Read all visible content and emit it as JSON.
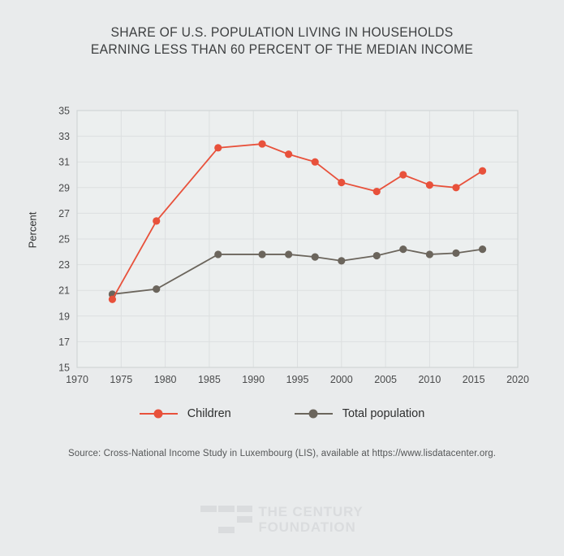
{
  "header": {
    "line1": "SHARE OF U.S. POPULATION LIVING IN HOUSEHOLDS",
    "line2": "EARNING LESS THAN 60 PERCENT OF THE MEDIAN INCOME"
  },
  "chart_data": {
    "type": "line",
    "title": "Share of U.S. population living in households earning less than 60 percent of the median income",
    "ylabel": "Percent",
    "xlabel": "",
    "x": [
      1974,
      1979,
      1986,
      1991,
      1994,
      1997,
      2000,
      2004,
      2007,
      2010,
      2013,
      2016
    ],
    "series": [
      {
        "name": "Children",
        "color": "#e8513b",
        "values": [
          20.3,
          26.4,
          32.1,
          32.4,
          31.6,
          31.0,
          29.4,
          28.7,
          30.0,
          29.2,
          29.0,
          30.3
        ]
      },
      {
        "name": "Total population",
        "color": "#6b655c",
        "values": [
          20.7,
          21.1,
          23.8,
          23.8,
          23.8,
          23.6,
          23.3,
          23.7,
          24.2,
          23.8,
          23.9,
          24.2
        ]
      }
    ],
    "xlim": [
      1970,
      2020
    ],
    "ylim": [
      15,
      35
    ],
    "xticks": [
      1970,
      1975,
      1980,
      1985,
      1990,
      1995,
      2000,
      2005,
      2010,
      2015,
      2020
    ],
    "yticks": [
      15,
      17,
      19,
      21,
      23,
      25,
      27,
      29,
      31,
      33,
      35
    ],
    "grid": true,
    "legend_position": "bottom"
  },
  "source": {
    "text": "Source:  Cross-National Income Study in Luxembourg (LIS), available at https://www.lisdatacenter.org."
  },
  "logo": {
    "line1": "THE CENTURY",
    "line2": "FOUNDATION"
  },
  "colors": {
    "background": "#e9ebec",
    "plot_background": "#ecefef",
    "grid": "#dcdfe0",
    "plot_border": "#d1d5d6",
    "children_red": "#e8513b",
    "total_gray": "#6b655c",
    "title_text": "#3d3f40",
    "tick_text": "#4a4b4c",
    "source_text": "#545657",
    "logo_gray": "#dadcde"
  }
}
